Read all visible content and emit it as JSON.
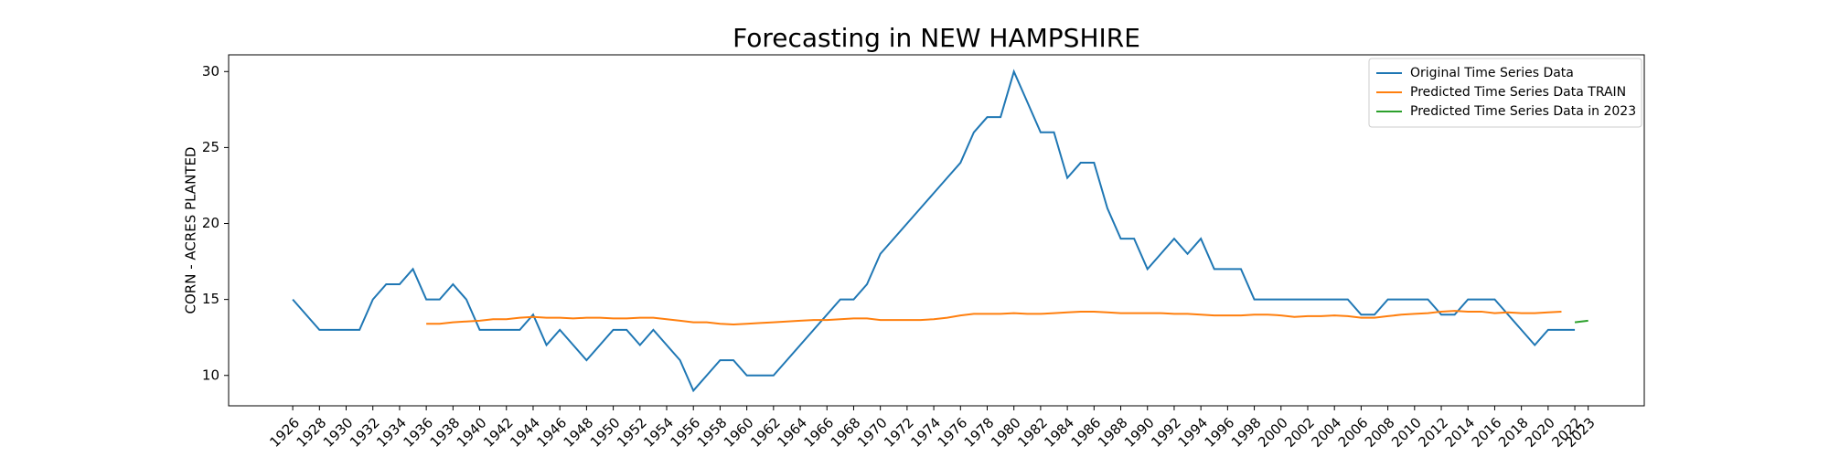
{
  "chart_data": {
    "type": "line",
    "title": "Forecasting in NEW HAMPSHIRE",
    "y_label": "CORN - ACRES PLANTED",
    "xlim": [
      1921.2,
      2027.2
    ],
    "ylim": [
      8.0,
      31.1
    ],
    "yticks": [
      10,
      15,
      20,
      25,
      30
    ],
    "xticks": [
      1926,
      1928,
      1930,
      1932,
      1934,
      1936,
      1938,
      1940,
      1942,
      1944,
      1946,
      1948,
      1950,
      1952,
      1954,
      1956,
      1958,
      1960,
      1962,
      1964,
      1966,
      1968,
      1970,
      1972,
      1974,
      1976,
      1978,
      1980,
      1982,
      1984,
      1986,
      1988,
      1990,
      1992,
      1994,
      1996,
      1998,
      2000,
      2002,
      2004,
      2006,
      2008,
      2010,
      2012,
      2014,
      2016,
      2018,
      2020,
      2022,
      2023
    ],
    "legend": "upper right",
    "series": [
      {
        "name": "Original Time Series Data",
        "color": "#1f77b4",
        "x": [
          1926,
          1927,
          1928,
          1929,
          1930,
          1931,
          1932,
          1933,
          1934,
          1935,
          1936,
          1937,
          1938,
          1939,
          1940,
          1941,
          1942,
          1943,
          1944,
          1945,
          1946,
          1947,
          1948,
          1949,
          1950,
          1951,
          1952,
          1953,
          1954,
          1955,
          1956,
          1957,
          1958,
          1959,
          1960,
          1961,
          1962,
          1963,
          1964,
          1965,
          1966,
          1967,
          1968,
          1969,
          1970,
          1971,
          1972,
          1973,
          1974,
          1975,
          1976,
          1977,
          1978,
          1979,
          1980,
          1981,
          1982,
          1983,
          1984,
          1985,
          1986,
          1987,
          1988,
          1989,
          1990,
          1991,
          1992,
          1993,
          1994,
          1995,
          1996,
          1997,
          1998,
          1999,
          2000,
          2001,
          2002,
          2003,
          2004,
          2005,
          2006,
          2007,
          2008,
          2009,
          2010,
          2011,
          2012,
          2013,
          2014,
          2015,
          2016,
          2017,
          2018,
          2019,
          2020,
          2021,
          2022
        ],
        "values": [
          15,
          14,
          13,
          13,
          13,
          13,
          15,
          16,
          16,
          17,
          15,
          15,
          16,
          15,
          13,
          13,
          13,
          13,
          14,
          12,
          13,
          12,
          11,
          12,
          13,
          13,
          12,
          13,
          12,
          11,
          9,
          10,
          11,
          11,
          10,
          10,
          10,
          11,
          12,
          13,
          14,
          15,
          15,
          16,
          18,
          19,
          20,
          21,
          22,
          23,
          24,
          26,
          27,
          27,
          30,
          28,
          26,
          26,
          23,
          24,
          24,
          21,
          19,
          19,
          17,
          18,
          19,
          18,
          19,
          17,
          17,
          17,
          15,
          15,
          15,
          15,
          15,
          15,
          15,
          15,
          14,
          14,
          15,
          15,
          15,
          15,
          14,
          14,
          15,
          15,
          15,
          14,
          13,
          12,
          13,
          13,
          13
        ]
      },
      {
        "name": "Predicted Time Series Data TRAIN",
        "color": "#ff7f0e",
        "x": [
          1936,
          1937,
          1938,
          1939,
          1940,
          1941,
          1942,
          1943,
          1944,
          1945,
          1946,
          1947,
          1948,
          1949,
          1950,
          1951,
          1952,
          1953,
          1954,
          1955,
          1956,
          1957,
          1958,
          1959,
          1960,
          1961,
          1962,
          1963,
          1964,
          1965,
          1966,
          1967,
          1968,
          1969,
          1970,
          1971,
          1972,
          1973,
          1974,
          1975,
          1976,
          1977,
          1978,
          1979,
          1980,
          1981,
          1982,
          1983,
          1984,
          1985,
          1986,
          1987,
          1988,
          1989,
          1990,
          1991,
          1992,
          1993,
          1994,
          1995,
          1996,
          1997,
          1998,
          1999,
          2000,
          2001,
          2002,
          2003,
          2004,
          2005,
          2006,
          2007,
          2008,
          2009,
          2010,
          2011,
          2012,
          2013,
          2014,
          2015,
          2016,
          2017,
          2018,
          2019,
          2020,
          2021
        ],
        "values": [
          13.4,
          13.4,
          13.5,
          13.55,
          13.6,
          13.7,
          13.7,
          13.8,
          13.85,
          13.8,
          13.8,
          13.75,
          13.8,
          13.8,
          13.75,
          13.75,
          13.8,
          13.8,
          13.7,
          13.6,
          13.5,
          13.5,
          13.4,
          13.35,
          13.4,
          13.45,
          13.5,
          13.55,
          13.6,
          13.65,
          13.65,
          13.7,
          13.75,
          13.75,
          13.65,
          13.65,
          13.65,
          13.65,
          13.7,
          13.8,
          13.95,
          14.05,
          14.05,
          14.05,
          14.1,
          14.05,
          14.05,
          14.1,
          14.15,
          14.2,
          14.2,
          14.15,
          14.1,
          14.1,
          14.1,
          14.1,
          14.05,
          14.05,
          14.0,
          13.95,
          13.95,
          13.95,
          14.0,
          14.0,
          13.95,
          13.85,
          13.9,
          13.9,
          13.95,
          13.9,
          13.8,
          13.8,
          13.9,
          14.0,
          14.05,
          14.1,
          14.2,
          14.25,
          14.2,
          14.2,
          14.1,
          14.15,
          14.1,
          14.1,
          14.15,
          14.2
        ]
      },
      {
        "name": "Predicted Time Series Data in 2023",
        "color": "#2ca02c",
        "x": [
          2022,
          2023
        ],
        "values": [
          13.5,
          13.6
        ]
      }
    ]
  }
}
